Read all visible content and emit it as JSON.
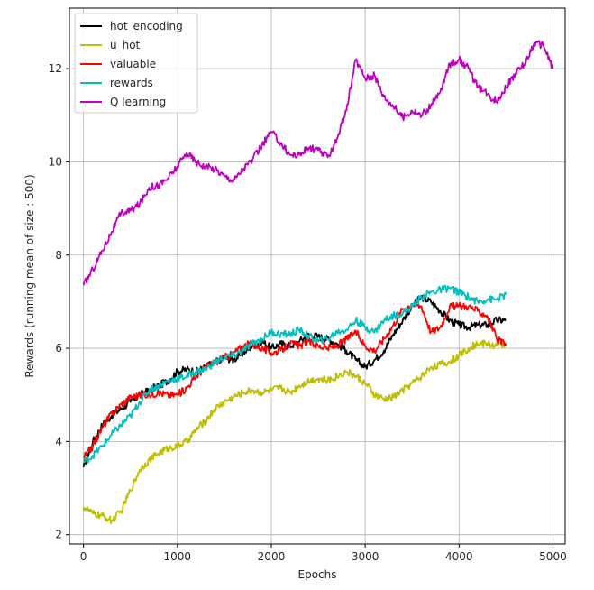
{
  "chart_data": {
    "type": "line",
    "title": "",
    "xlabel": "Epochs",
    "ylabel": "Rewards (running mean of size : 500)",
    "xlim": [
      -150,
      5130
    ],
    "ylim": [
      1.8,
      13.3
    ],
    "xticks": [
      0,
      1000,
      2000,
      3000,
      4000,
      5000
    ],
    "yticks": [
      2,
      4,
      6,
      8,
      10,
      12
    ],
    "xtick_labels": [
      "0",
      "1000",
      "2000",
      "3000",
      "4000",
      "5000"
    ],
    "ytick_labels": [
      "2",
      "4",
      "6",
      "8",
      "10",
      "12"
    ],
    "grid": true,
    "legend_position": "top-left",
    "series": [
      {
        "name": "hot_encoding",
        "color": "#000000",
        "x": [
          0,
          100,
          200,
          300,
          400,
          500,
          600,
          700,
          800,
          900,
          1000,
          1100,
          1200,
          1300,
          1400,
          1500,
          1600,
          1700,
          1800,
          1900,
          2000,
          2100,
          2200,
          2300,
          2400,
          2500,
          2600,
          2700,
          2800,
          2900,
          3000,
          3100,
          3200,
          3300,
          3400,
          3500,
          3600,
          3700,
          3800,
          3900,
          4000,
          4100,
          4200,
          4300,
          4400,
          4500
        ],
        "y": [
          3.45,
          4.0,
          4.35,
          4.55,
          4.7,
          4.85,
          5.0,
          5.1,
          5.2,
          5.3,
          5.5,
          5.55,
          5.5,
          5.6,
          5.7,
          5.8,
          5.75,
          5.9,
          6.05,
          6.15,
          6.0,
          6.1,
          6.05,
          6.15,
          6.3,
          6.25,
          6.2,
          6.1,
          5.95,
          5.75,
          5.6,
          5.75,
          5.95,
          6.3,
          6.6,
          6.9,
          7.1,
          7.0,
          6.8,
          6.6,
          6.5,
          6.45,
          6.5,
          6.5,
          6.6,
          6.6
        ]
      },
      {
        "name": "u_hot",
        "color": "#bfbf00",
        "x": [
          0,
          100,
          200,
          300,
          400,
          500,
          600,
          700,
          800,
          900,
          1000,
          1100,
          1200,
          1300,
          1400,
          1500,
          1600,
          1700,
          1800,
          1900,
          2000,
          2100,
          2200,
          2300,
          2400,
          2500,
          2600,
          2700,
          2800,
          2900,
          3000,
          3100,
          3200,
          3300,
          3400,
          3500,
          3600,
          3700,
          3800,
          3900,
          4000,
          4100,
          4200,
          4300,
          4400,
          4500
        ],
        "y": [
          2.6,
          2.45,
          2.4,
          2.3,
          2.5,
          2.95,
          3.4,
          3.6,
          3.75,
          3.85,
          3.9,
          4.0,
          4.25,
          4.45,
          4.7,
          4.85,
          4.95,
          5.05,
          5.1,
          5.05,
          5.1,
          5.15,
          5.05,
          5.2,
          5.3,
          5.35,
          5.3,
          5.4,
          5.5,
          5.4,
          5.25,
          5.0,
          4.9,
          4.95,
          5.1,
          5.25,
          5.4,
          5.6,
          5.65,
          5.7,
          5.85,
          6.0,
          6.1,
          6.1,
          6.05,
          6.1
        ]
      },
      {
        "name": "valuable",
        "color": "#ff0000",
        "x": [
          0,
          100,
          200,
          300,
          400,
          500,
          600,
          700,
          800,
          900,
          1000,
          1100,
          1200,
          1300,
          1400,
          1500,
          1600,
          1700,
          1800,
          1900,
          2000,
          2100,
          2200,
          2300,
          2400,
          2500,
          2600,
          2700,
          2800,
          2900,
          3000,
          3100,
          3200,
          3300,
          3400,
          3500,
          3600,
          3700,
          3800,
          3900,
          4000,
          4100,
          4200,
          4300,
          4400,
          4500
        ],
        "y": [
          3.65,
          3.9,
          4.3,
          4.6,
          4.8,
          4.95,
          5.0,
          5.0,
          5.05,
          5.0,
          5.0,
          5.15,
          5.4,
          5.6,
          5.7,
          5.8,
          5.9,
          6.05,
          6.1,
          6.0,
          5.9,
          5.95,
          6.1,
          6.05,
          6.15,
          6.05,
          6.0,
          6.05,
          6.2,
          6.35,
          6.05,
          5.95,
          6.2,
          6.5,
          6.85,
          6.95,
          6.9,
          6.35,
          6.45,
          6.9,
          6.9,
          6.9,
          6.8,
          6.7,
          6.2,
          6.05
        ]
      },
      {
        "name": "rewards",
        "color": "#00bfbf",
        "x": [
          0,
          100,
          200,
          300,
          400,
          500,
          600,
          700,
          800,
          900,
          1000,
          1100,
          1200,
          1300,
          1400,
          1500,
          1600,
          1700,
          1800,
          1900,
          2000,
          2100,
          2200,
          2300,
          2400,
          2500,
          2600,
          2700,
          2800,
          2900,
          3000,
          3100,
          3200,
          3300,
          3400,
          3500,
          3600,
          3700,
          3800,
          3900,
          4000,
          4100,
          4200,
          4300,
          4400,
          4500
        ],
        "y": [
          3.55,
          3.7,
          3.9,
          4.15,
          4.35,
          4.55,
          4.85,
          5.1,
          5.2,
          5.3,
          5.35,
          5.4,
          5.5,
          5.55,
          5.7,
          5.8,
          5.85,
          5.95,
          6.1,
          6.2,
          6.35,
          6.3,
          6.3,
          6.4,
          6.25,
          6.15,
          6.2,
          6.35,
          6.4,
          6.6,
          6.45,
          6.35,
          6.6,
          6.7,
          6.75,
          6.9,
          7.1,
          7.2,
          7.25,
          7.3,
          7.2,
          7.1,
          7.0,
          7.05,
          7.05,
          7.15
        ]
      },
      {
        "name": "Q learning",
        "color": "#bf00bf",
        "x": [
          0,
          100,
          200,
          300,
          400,
          500,
          600,
          700,
          800,
          900,
          1000,
          1100,
          1200,
          1300,
          1400,
          1500,
          1600,
          1700,
          1800,
          1900,
          2000,
          2100,
          2200,
          2300,
          2400,
          2500,
          2600,
          2700,
          2800,
          2900,
          3000,
          3100,
          3200,
          3300,
          3400,
          3500,
          3600,
          3700,
          3800,
          3900,
          4000,
          4100,
          4200,
          4300,
          4400,
          4500,
          4600,
          4700,
          4800,
          4900,
          5000
        ],
        "y": [
          7.35,
          7.7,
          8.1,
          8.5,
          8.9,
          8.95,
          9.1,
          9.45,
          9.5,
          9.65,
          9.9,
          10.2,
          10.0,
          9.9,
          9.85,
          9.7,
          9.6,
          9.85,
          10.05,
          10.35,
          10.65,
          10.4,
          10.15,
          10.15,
          10.3,
          10.25,
          10.1,
          10.5,
          11.1,
          12.2,
          11.8,
          11.85,
          11.4,
          11.2,
          10.95,
          11.1,
          11.0,
          11.2,
          11.5,
          12.1,
          12.2,
          12.0,
          11.6,
          11.45,
          11.3,
          11.6,
          11.9,
          12.1,
          12.55,
          12.5,
          12.0
        ]
      }
    ]
  }
}
